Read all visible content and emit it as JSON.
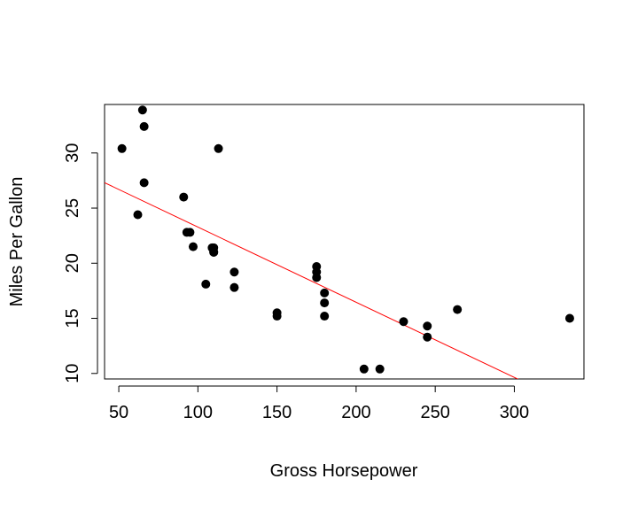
{
  "chart_data": {
    "type": "scatter",
    "title": "",
    "xlabel": "Gross Horsepower",
    "ylabel": "Miles Per Gallon",
    "xlim": [
      41,
      344
    ],
    "ylim": [
      9.5,
      34.4
    ],
    "xticks": [
      50,
      100,
      150,
      200,
      250,
      300
    ],
    "yticks": [
      10,
      15,
      20,
      25,
      30
    ],
    "grid": false,
    "legend": "none",
    "point_color": "#000000",
    "line_color": "#ff0000",
    "x": [
      110,
      110,
      93,
      110,
      175,
      105,
      245,
      62,
      95,
      123,
      123,
      180,
      180,
      180,
      205,
      215,
      230,
      66,
      52,
      65,
      97,
      150,
      150,
      245,
      175,
      66,
      91,
      113,
      264,
      175,
      335,
      109
    ],
    "y": [
      21.0,
      21.0,
      22.8,
      21.4,
      18.7,
      18.1,
      14.3,
      24.4,
      22.8,
      19.2,
      17.8,
      16.4,
      17.3,
      15.2,
      10.4,
      10.4,
      14.7,
      32.4,
      30.4,
      33.9,
      21.5,
      15.5,
      15.2,
      13.3,
      19.2,
      27.3,
      26.0,
      30.4,
      15.8,
      19.7,
      15.0,
      21.4
    ],
    "fit_line": {
      "intercept": 30.1,
      "slope": -0.0682
    }
  }
}
